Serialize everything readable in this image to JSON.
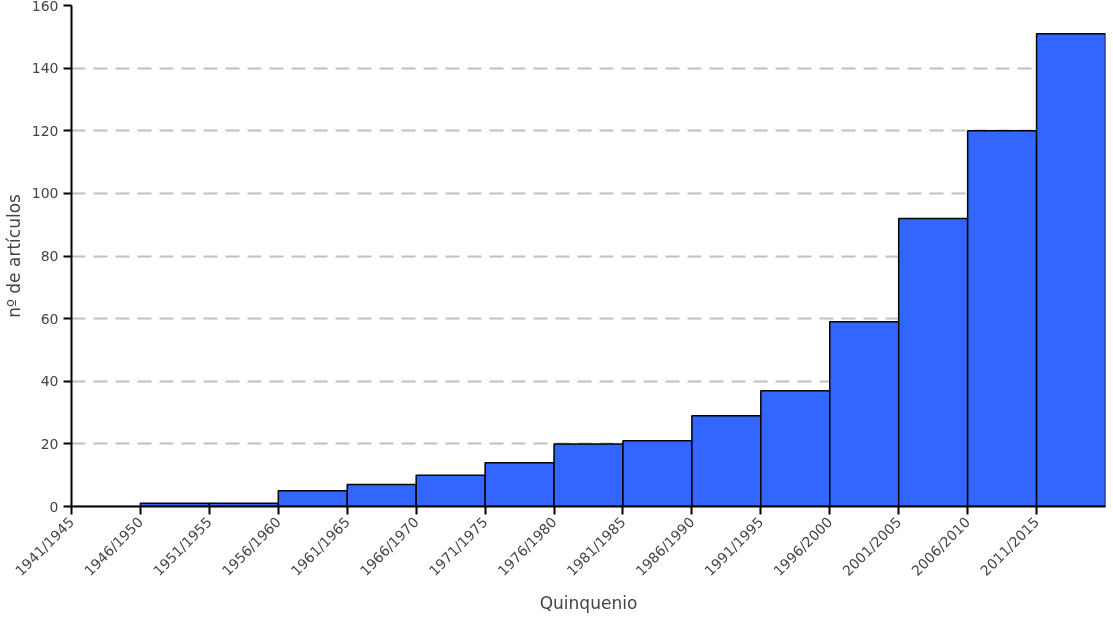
{
  "chart_data": {
    "type": "bar",
    "xlabel": "Quinquenio",
    "ylabel": "nº de artículos",
    "categories": [
      "1941/1945",
      "1946/1950",
      "1951/1955",
      "1956/1960",
      "1961/1965",
      "1966/1970",
      "1971/1975",
      "1976/1980",
      "1981/1985",
      "1986/1990",
      "1991/1995",
      "1996/2000",
      "2001/2005",
      "2006/2010",
      "2011/2015"
    ],
    "values": [
      0,
      1,
      1,
      5,
      7,
      10,
      14,
      20,
      21,
      29,
      37,
      59,
      92,
      120,
      151
    ],
    "color": "#3366ff",
    "ylim": [
      0,
      160
    ],
    "yticks": [
      0,
      20,
      40,
      60,
      80,
      100,
      120,
      140,
      160
    ],
    "grid": "y"
  }
}
